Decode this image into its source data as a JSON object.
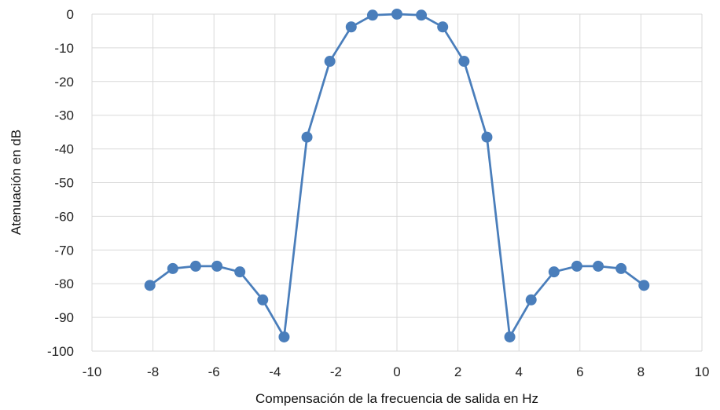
{
  "chart_data": {
    "type": "line",
    "title": "",
    "xlabel": "Compensación de la frecuencia de salida en Hz",
    "ylabel": "Atenuación en dB",
    "xlim": [
      -10,
      10
    ],
    "ylim": [
      -100,
      0
    ],
    "xticks": [
      -10,
      -8,
      -6,
      -4,
      -2,
      0,
      2,
      4,
      6,
      8,
      10
    ],
    "yticks": [
      0,
      -10,
      -20,
      -30,
      -40,
      -50,
      -60,
      -70,
      -80,
      -90,
      -100
    ],
    "grid": true,
    "legend": "none",
    "series": [
      {
        "color": "#4a7ebb",
        "x": [
          -8.1,
          -7.35,
          -6.6,
          -5.9,
          -5.15,
          -4.4,
          -3.7,
          -2.95,
          -2.2,
          -1.5,
          -0.8,
          0,
          0.8,
          1.5,
          2.2,
          2.95,
          3.7,
          4.4,
          5.15,
          5.9,
          6.6,
          7.35,
          8.1
        ],
        "y": [
          -80.5,
          -75.5,
          -74.8,
          -74.8,
          -76.5,
          -84.8,
          -95.8,
          -36.5,
          -14.0,
          -3.8,
          -0.3,
          0,
          -0.3,
          -3.8,
          -14.0,
          -36.5,
          -95.8,
          -84.8,
          -76.5,
          -74.8,
          -74.8,
          -75.5,
          -80.5
        ]
      }
    ]
  },
  "colors": {
    "series": "#4a7ebb",
    "grid": "#d9d9d9"
  }
}
